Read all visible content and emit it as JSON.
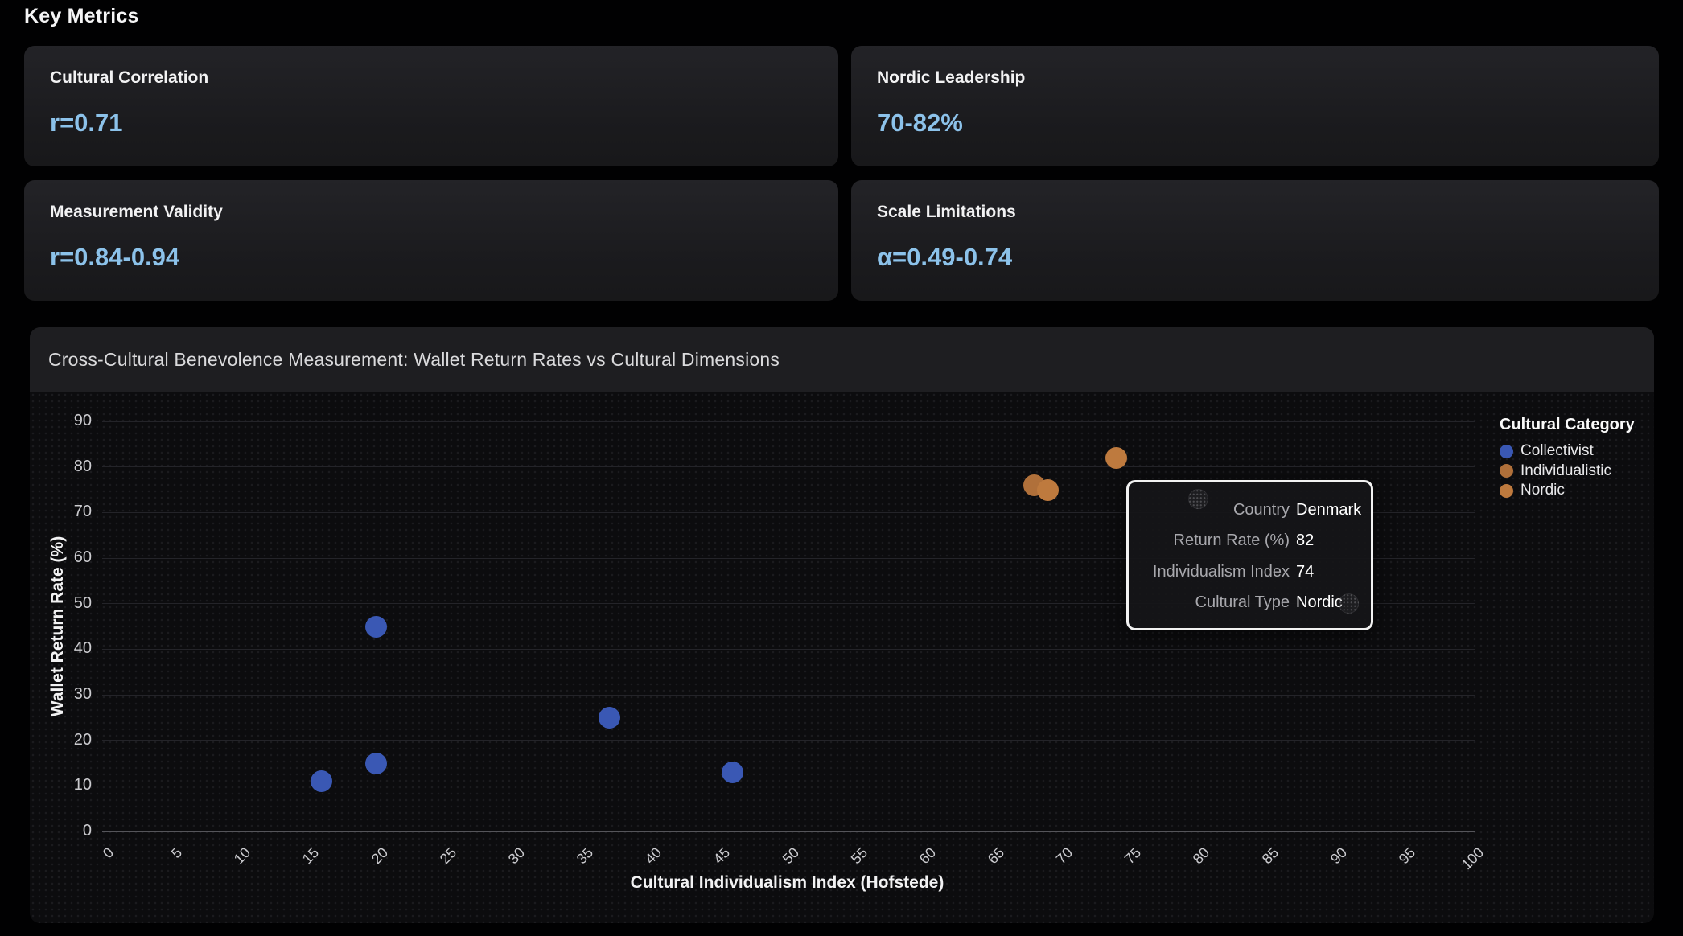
{
  "page_title": "Key Metrics",
  "colors": {
    "accent_value": "#8CC2EA",
    "collectivist": "#3A58B4",
    "individualistic": "#B0703A",
    "nordic": "#BE7A3E"
  },
  "metrics": [
    {
      "label": "Cultural Correlation",
      "value": "r=0.71"
    },
    {
      "label": "Nordic Leadership",
      "value": "70-82%"
    },
    {
      "label": "Measurement Validity",
      "value": "r=0.84-0.94"
    },
    {
      "label": "Scale Limitations",
      "value": "α=0.49-0.74"
    }
  ],
  "chart_data": {
    "type": "scatter",
    "title": "Cross-Cultural Benevolence Measurement: Wallet Return Rates vs Cultural Dimensions",
    "xlabel": "Cultural Individualism Index (Hofstede)",
    "ylabel": "Wallet Return Rate (%)",
    "xlim": [
      0,
      100
    ],
    "ylim": [
      0,
      90
    ],
    "x_ticks": [
      0,
      5,
      10,
      15,
      20,
      25,
      30,
      35,
      40,
      45,
      50,
      55,
      60,
      65,
      70,
      75,
      80,
      85,
      90,
      95,
      100
    ],
    "y_ticks": [
      0,
      10,
      20,
      30,
      40,
      50,
      60,
      70,
      80,
      90
    ],
    "grid": "horizontal",
    "legend_title": "Cultural Category",
    "legend_position": "right",
    "series": [
      {
        "name": "Collectivist",
        "color": "#3A58B4",
        "points": [
          [
            16,
            11
          ],
          [
            20,
            15
          ],
          [
            20,
            45
          ],
          [
            37,
            25
          ],
          [
            46,
            13
          ]
        ]
      },
      {
        "name": "Individualistic",
        "color": "#B0703A",
        "points": [
          [
            68,
            76
          ]
        ],
        "occluded_points": [
          [
            80,
            73
          ],
          [
            91,
            50
          ]
        ]
      },
      {
        "name": "Nordic",
        "color": "#BE7A3E",
        "points": [
          [
            69,
            75
          ],
          [
            74,
            82
          ]
        ]
      }
    ]
  },
  "tooltip": {
    "rows": [
      {
        "label": "Country",
        "value": "Denmark"
      },
      {
        "label": "Return Rate (%)",
        "value": "82"
      },
      {
        "label": "Individualism Index",
        "value": "74"
      },
      {
        "label": "Cultural Type",
        "value": "Nordic"
      }
    ]
  }
}
